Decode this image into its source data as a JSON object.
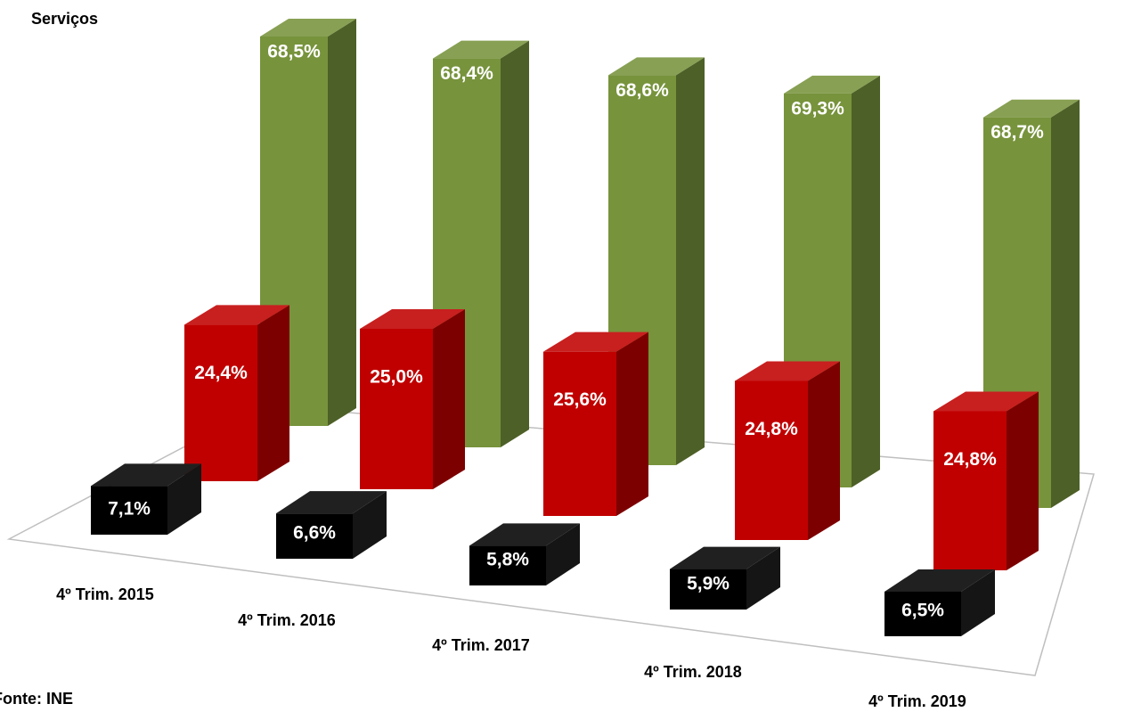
{
  "chart_data": {
    "type": "bar3d",
    "series_label": "Serviços",
    "source": "Fonte: INE",
    "categories": [
      "4º Trim. 2015",
      "4º Trim. 2016",
      "4º Trim. 2017",
      "4º Trim. 2018",
      "4º Trim. 2019"
    ],
    "series": [
      {
        "color": "#000000",
        "values": [
          7.1,
          6.6,
          5.8,
          5.9,
          6.5
        ],
        "value_labels": [
          "7,1%",
          "6,6%",
          "5,8%",
          "5,9%",
          "6,5%"
        ]
      },
      {
        "color": "#c00000",
        "values": [
          24.4,
          25.0,
          25.6,
          24.8,
          24.8
        ],
        "value_labels": [
          "24,4%",
          "25,0%",
          "25,6%",
          "24,8%",
          "24,8%"
        ]
      },
      {
        "name": "Serviços",
        "color": "#77933c",
        "values": [
          68.5,
          68.4,
          68.6,
          69.3,
          68.7
        ],
        "value_labels": [
          "68,5%",
          "68,4%",
          "68,6%",
          "69,3%",
          "68,7%"
        ]
      }
    ]
  }
}
